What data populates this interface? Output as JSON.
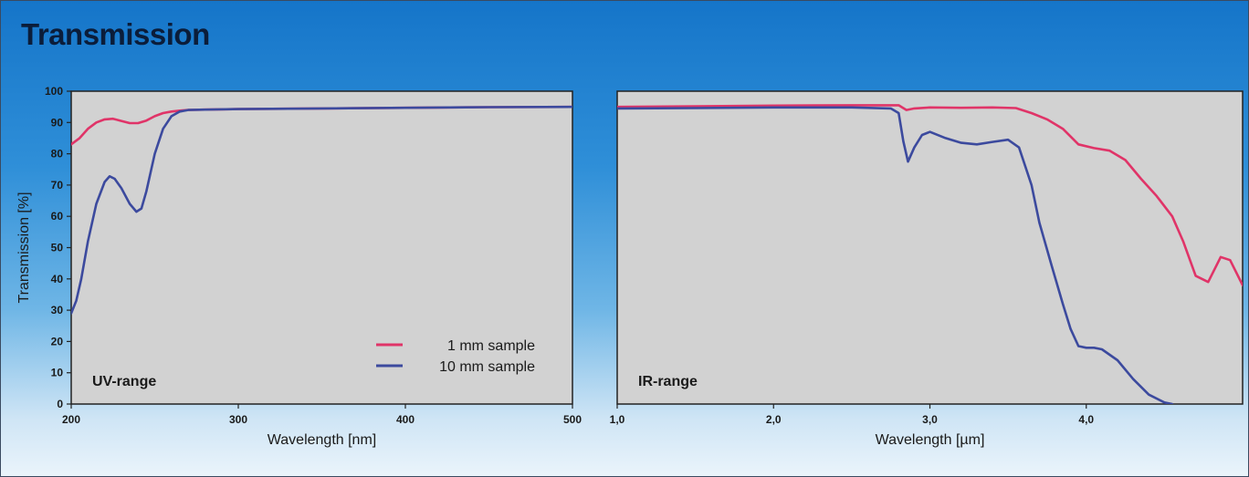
{
  "title": "Transmission",
  "colors": {
    "thin_sample": "#e03468",
    "thick_sample": "#3c4a9e",
    "plot_bg": "#d2d2d2"
  },
  "chart_data": [
    {
      "type": "line",
      "panel_label": "UV-range",
      "xlabel": "Wavelength [nm]",
      "ylabel": "Transmission [%]",
      "xlim": [
        200,
        500
      ],
      "ylim": [
        0,
        100
      ],
      "xticks": [
        200,
        300,
        400,
        500
      ],
      "xtick_labels": [
        "200",
        "300",
        "400",
        "500"
      ],
      "yticks": [
        0,
        10,
        20,
        30,
        40,
        50,
        60,
        70,
        80,
        90,
        100
      ],
      "grid": false,
      "legend_position": "bottom-right",
      "series": [
        {
          "name": "1 mm sample",
          "color": "#e03468",
          "x": [
            200,
            205,
            210,
            215,
            220,
            225,
            230,
            235,
            240,
            245,
            250,
            255,
            260,
            265,
            270,
            280,
            300,
            350,
            400,
            450,
            500
          ],
          "y": [
            83,
            85,
            88,
            90,
            91,
            91.2,
            90.5,
            89.8,
            89.8,
            90.6,
            92,
            93,
            93.5,
            93.8,
            94,
            94.1,
            94.3,
            94.5,
            94.7,
            94.9,
            95
          ]
        },
        {
          "name": "10 mm sample",
          "color": "#3c4a9e",
          "x": [
            200,
            203,
            206,
            210,
            215,
            220,
            223,
            226,
            230,
            235,
            239,
            242,
            245,
            250,
            255,
            260,
            265,
            270,
            280,
            300,
            350,
            400,
            450,
            500
          ],
          "y": [
            29,
            33,
            40,
            52,
            64,
            71,
            72.8,
            72,
            69,
            64,
            61.5,
            62.5,
            68,
            80,
            88,
            92,
            93.5,
            94,
            94.1,
            94.3,
            94.5,
            94.7,
            94.9,
            95
          ]
        }
      ]
    },
    {
      "type": "line",
      "panel_label": "IR-range",
      "xlabel": "Wavelength [µm]",
      "ylabel": "",
      "xlim": [
        1.0,
        5.0
      ],
      "ylim": [
        0,
        100
      ],
      "xticks": [
        1.0,
        2.0,
        3.0,
        4.0
      ],
      "xtick_labels": [
        "1,0",
        "2,0",
        "3,0",
        "4,0"
      ],
      "grid": false,
      "series": [
        {
          "name": "1 mm sample",
          "color": "#e03468",
          "x": [
            1.0,
            1.5,
            2.0,
            2.5,
            2.8,
            2.85,
            2.9,
            3.0,
            3.2,
            3.4,
            3.55,
            3.65,
            3.75,
            3.85,
            3.95,
            4.05,
            4.15,
            4.25,
            4.35,
            4.45,
            4.55,
            4.62,
            4.7,
            4.78,
            4.86,
            4.92,
            5.0
          ],
          "y": [
            95,
            95.2,
            95.4,
            95.5,
            95.5,
            94,
            94.5,
            94.8,
            94.7,
            94.8,
            94.6,
            93,
            91,
            88,
            83,
            81.8,
            81,
            78,
            72,
            66.5,
            60,
            52,
            41,
            39,
            47,
            46,
            38
          ]
        },
        {
          "name": "10 mm sample",
          "color": "#3c4a9e",
          "x": [
            1.0,
            1.5,
            2.0,
            2.5,
            2.75,
            2.8,
            2.83,
            2.86,
            2.9,
            2.95,
            3.0,
            3.1,
            3.2,
            3.3,
            3.4,
            3.5,
            3.57,
            3.65,
            3.7,
            3.78,
            3.85,
            3.9,
            3.95,
            4.0,
            4.05,
            4.1,
            4.2,
            4.3,
            4.4,
            4.5,
            4.55
          ],
          "y": [
            94.5,
            94.6,
            94.8,
            94.8,
            94.5,
            93,
            84,
            77.5,
            82,
            86,
            87,
            85,
            83.5,
            83,
            83.8,
            84.5,
            82,
            70,
            58,
            44,
            32,
            24,
            18.5,
            18,
            18,
            17.5,
            14,
            8,
            3,
            0.5,
            0
          ]
        }
      ]
    }
  ]
}
